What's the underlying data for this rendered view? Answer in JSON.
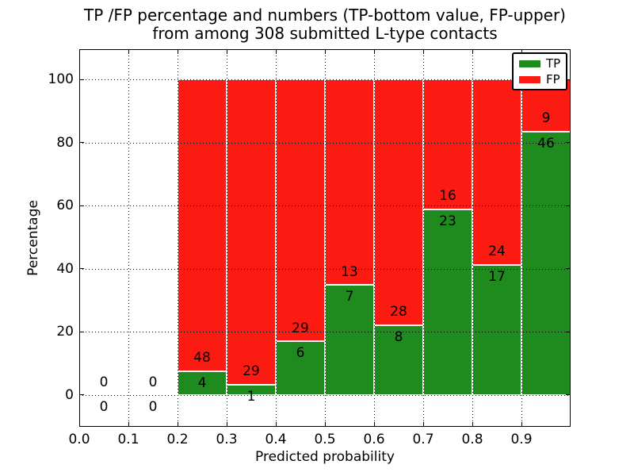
{
  "title": {
    "line1": "TP /FP percentage and numbers (TP-bottom value, FP-upper)",
    "line2": "from among 308 submitted L-type contacts"
  },
  "axes": {
    "xlabel": "Predicted probability",
    "ylabel": "Percentage",
    "x_tick_labels": [
      "0.0",
      "0.1",
      "0.2",
      "0.3",
      "0.4",
      "0.5",
      "0.6",
      "0.7",
      "0.8",
      "0.9"
    ],
    "y_tick_labels": [
      "0",
      "20",
      "40",
      "60",
      "80",
      "100"
    ],
    "y_ticks": [
      0,
      20,
      40,
      60,
      80,
      100
    ],
    "xlim": [
      0.0,
      1.0
    ],
    "ylim": [
      -10,
      110
    ],
    "grid": "dotted"
  },
  "legend": {
    "position": "upper-right",
    "items": [
      {
        "label": "TP",
        "color": "#1f8b1f"
      },
      {
        "label": "FP",
        "color": "#fb1b12"
      }
    ]
  },
  "chart_data": {
    "type": "bar",
    "stacked": true,
    "normalized_to": 100,
    "bin_width": 0.1,
    "bin_starts": [
      0.0,
      0.1,
      0.2,
      0.3,
      0.4,
      0.5,
      0.6,
      0.7,
      0.8,
      0.9
    ],
    "categories": [
      "0.0-0.1",
      "0.1-0.2",
      "0.2-0.3",
      "0.3-0.4",
      "0.4-0.5",
      "0.5-0.6",
      "0.6-0.7",
      "0.7-0.8",
      "0.8-0.9",
      "0.9-1.0"
    ],
    "series": [
      {
        "name": "TP",
        "color": "#1f8b1f",
        "counts": [
          0,
          0,
          4,
          1,
          6,
          7,
          8,
          23,
          17,
          46
        ],
        "pct_of_bin": [
          0,
          0,
          7.69,
          3.33,
          17.14,
          35.0,
          22.22,
          58.97,
          41.46,
          83.64
        ]
      },
      {
        "name": "FP",
        "color": "#fb1b12",
        "counts": [
          0,
          0,
          48,
          29,
          29,
          13,
          28,
          16,
          24,
          9
        ],
        "pct_of_bin": [
          0,
          0,
          92.31,
          96.67,
          82.86,
          65.0,
          77.78,
          41.03,
          58.54,
          16.36
        ]
      }
    ],
    "total_contacts": 308,
    "title": "TP /FP percentage and numbers (TP-bottom value, FP-upper) from among 308 submitted L-type contacts",
    "xlabel": "Predicted probability",
    "ylabel": "Percentage",
    "xlim": [
      0.0,
      1.0
    ],
    "ylim": [
      -10,
      110
    ],
    "legend_position": "upper-right",
    "annotation_rule": "FP count shown just above the TP/FP boundary, TP count just below it; zero bins show 0 above and below the baseline"
  }
}
